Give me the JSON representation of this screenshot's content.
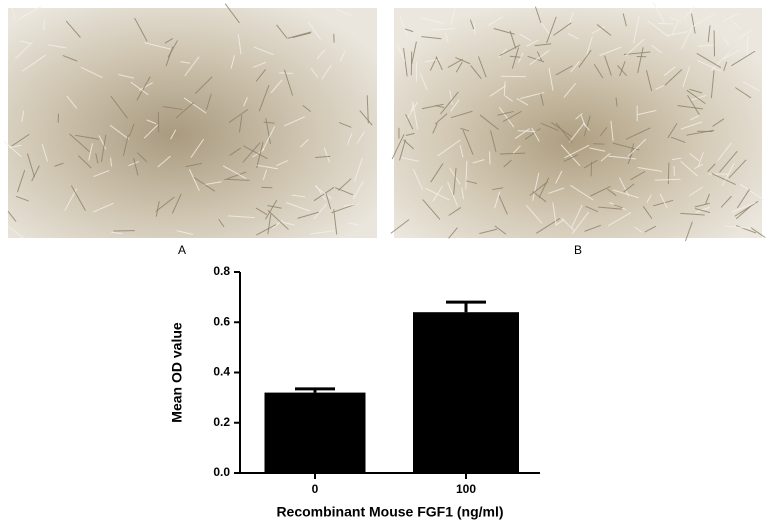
{
  "panels": [
    {
      "label": "A"
    },
    {
      "label": "B"
    }
  ],
  "chart_data": {
    "type": "bar",
    "categories": [
      "0",
      "100"
    ],
    "values": [
      0.32,
      0.64
    ],
    "errors": [
      0.015,
      0.04
    ],
    "color": "#000000",
    "xlabel": "Recombinant Mouse FGF1 (ng/ml)",
    "ylabel": "Mean OD value",
    "ylim": [
      0,
      0.8
    ],
    "yticks": [
      {
        "value": 0,
        "label": "0.0"
      },
      0.2,
      0.4,
      0.6,
      0.8
    ]
  }
}
